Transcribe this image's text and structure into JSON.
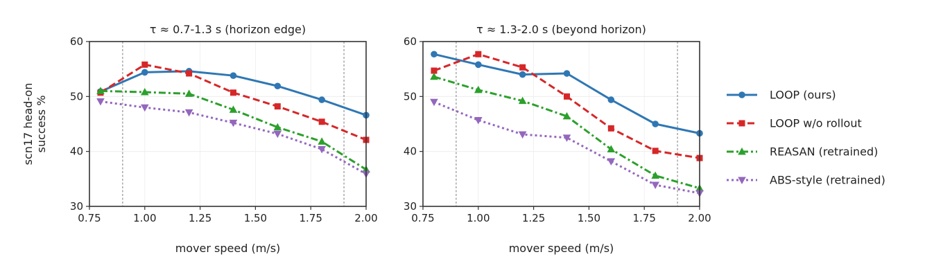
{
  "chart_data": [
    {
      "type": "line",
      "title": "τ ≈ 0.7-1.3 s (horizon edge)",
      "xlabel": "mover speed (m/s)",
      "ylabel": "scn17 head-on\nsuccess %",
      "xlim": [
        0.75,
        2.0
      ],
      "ylim": [
        30,
        60
      ],
      "xticks": [
        0.75,
        1.0,
        1.25,
        1.5,
        1.75,
        2.0
      ],
      "xtick_labels": [
        "0.75",
        "1.00",
        "1.25",
        "1.50",
        "1.75",
        "2.00"
      ],
      "yticks": [
        30,
        40,
        50,
        60
      ],
      "ytick_labels": [
        "30",
        "40",
        "50",
        "60"
      ],
      "vlines": [
        0.9,
        1.9
      ],
      "grid": true,
      "x": [
        0.8,
        1.0,
        1.2,
        1.4,
        1.6,
        1.8,
        2.0
      ],
      "series": [
        {
          "name": "LOOP (ours)",
          "values": [
            50.9,
            54.4,
            54.6,
            53.8,
            51.9,
            49.4,
            46.6
          ]
        },
        {
          "name": "LOOP w/o rollout",
          "values": [
            50.7,
            55.8,
            54.2,
            50.7,
            48.2,
            45.4,
            42.1
          ]
        },
        {
          "name": "REASAN (retrained)",
          "values": [
            51.0,
            50.8,
            50.5,
            47.6,
            44.4,
            41.8,
            36.7
          ]
        },
        {
          "name": "ABS-style (retrained)",
          "values": [
            49.1,
            48.0,
            47.1,
            45.2,
            43.2,
            40.4,
            35.9
          ]
        }
      ]
    },
    {
      "type": "line",
      "title": "τ ≈ 1.3-2.0 s (beyond horizon)",
      "xlabel": "mover speed (m/s)",
      "ylabel": "",
      "xlim": [
        0.75,
        2.0
      ],
      "ylim": [
        30,
        60
      ],
      "xticks": [
        0.75,
        1.0,
        1.25,
        1.5,
        1.75,
        2.0
      ],
      "xtick_labels": [
        "0.75",
        "1.00",
        "1.25",
        "1.50",
        "1.75",
        "2.00"
      ],
      "yticks": [
        30,
        40,
        50,
        60
      ],
      "ytick_labels": [
        "30",
        "40",
        "50",
        "60"
      ],
      "vlines": [
        0.9,
        1.9
      ],
      "grid": true,
      "x": [
        0.8,
        1.0,
        1.2,
        1.4,
        1.6,
        1.8,
        2.0
      ],
      "series": [
        {
          "name": "LOOP (ours)",
          "values": [
            57.7,
            55.8,
            54.0,
            54.2,
            49.4,
            45.0,
            43.3
          ]
        },
        {
          "name": "LOOP w/o rollout",
          "values": [
            54.7,
            57.7,
            55.3,
            50.0,
            44.2,
            40.1,
            38.8
          ]
        },
        {
          "name": "REASAN (retrained)",
          "values": [
            53.6,
            51.2,
            49.2,
            46.4,
            40.4,
            35.6,
            33.3
          ]
        },
        {
          "name": "ABS-style (retrained)",
          "values": [
            49.0,
            45.7,
            43.1,
            42.5,
            38.2,
            33.9,
            32.4
          ]
        }
      ]
    }
  ],
  "legend": {
    "placement": "right",
    "items": [
      {
        "label": "LOOP (ours)",
        "color": "#2f77b4",
        "marker": "circle",
        "dash": "solid"
      },
      {
        "label": "LOOP w/o rollout",
        "color": "#d62728",
        "marker": "square",
        "dash": "dashed"
      },
      {
        "label": "REASAN (retrained)",
        "color": "#2ca02c",
        "marker": "triangle-up",
        "dash": "dashdot"
      },
      {
        "label": "ABS-style (retrained)",
        "color": "#9467bd",
        "marker": "triangle-down",
        "dash": "dotted"
      }
    ]
  }
}
